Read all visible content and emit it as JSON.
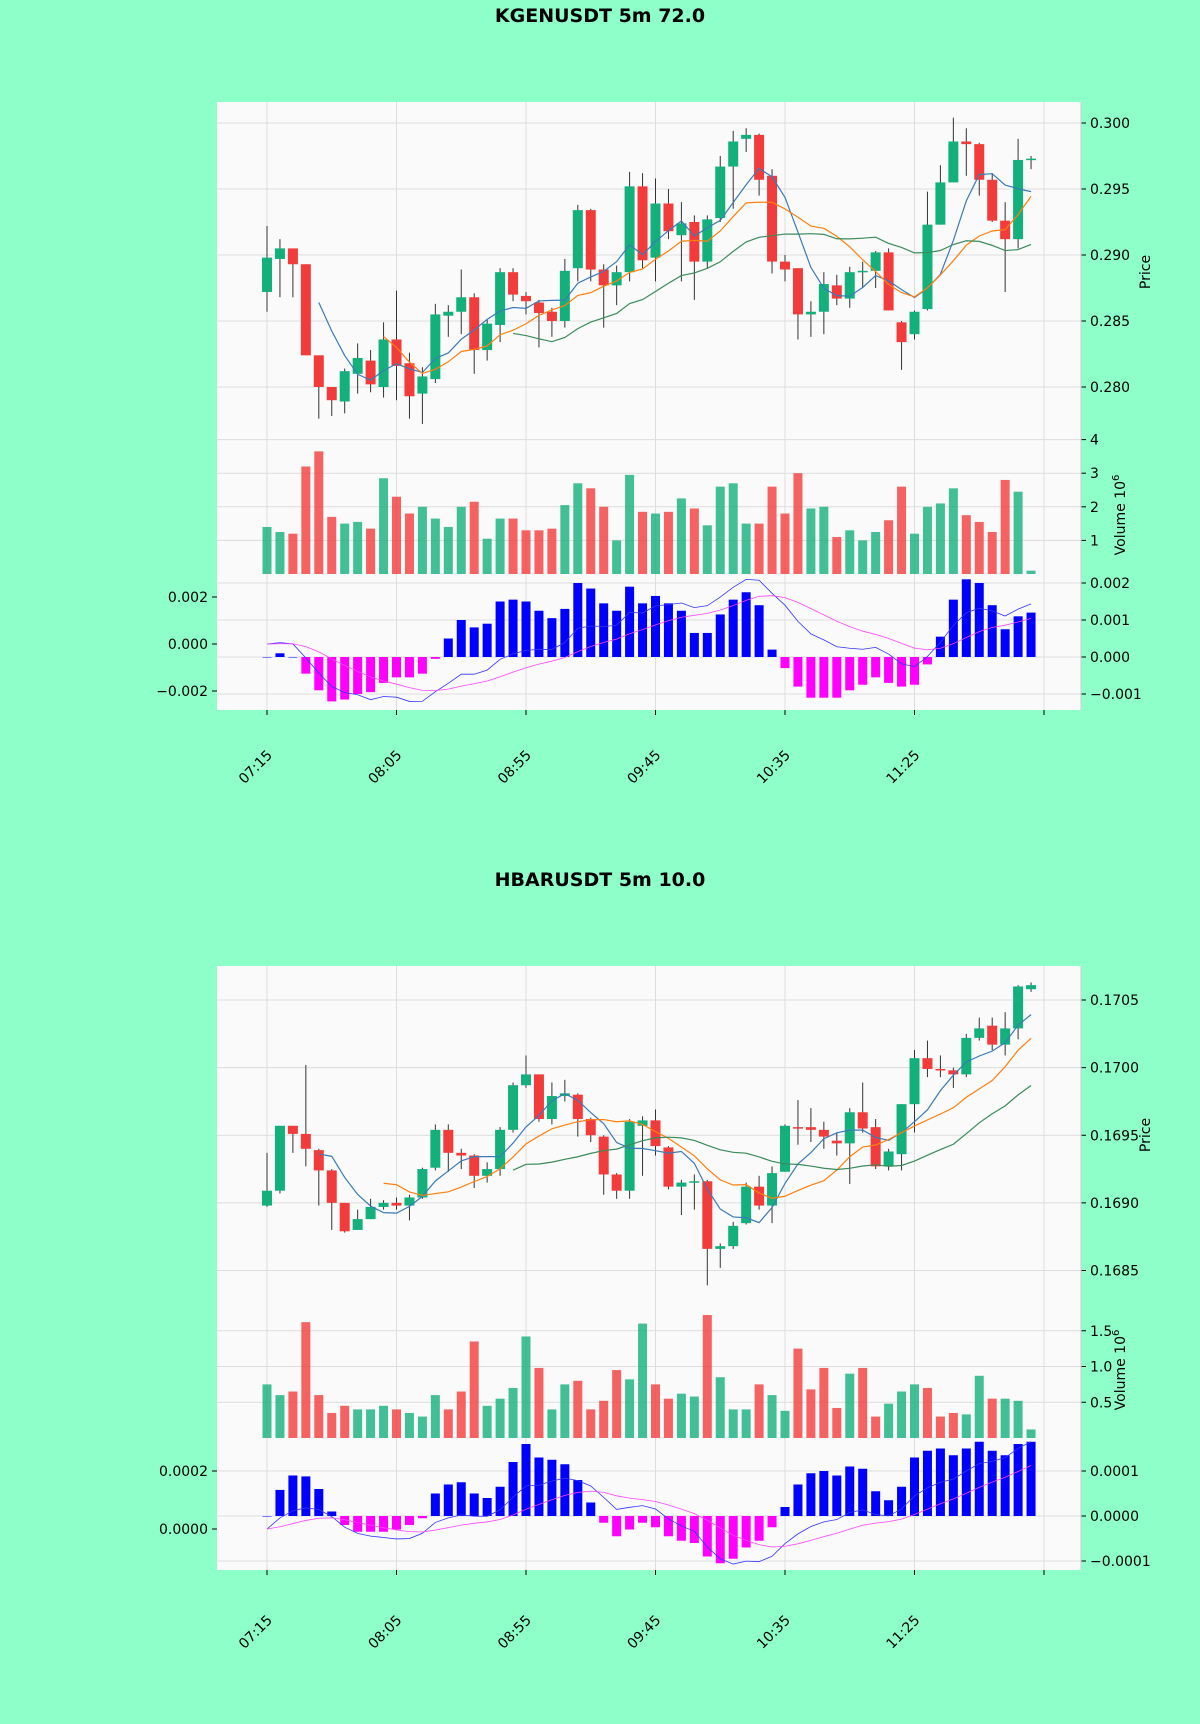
{
  "colors": {
    "background": "#8effc8",
    "panel": "#fafafa",
    "up": "#14b07c",
    "down": "#f23c3c",
    "ma5": "#3b7ab8",
    "ma10": "#ff7f0e",
    "ma20": "#3a8a5a",
    "macd_pos": "#0000ff",
    "macd_neg": "#ff00ff",
    "macd_line": "#3333ff",
    "signal_line": "#ff44ff"
  },
  "x_tick_labels": [
    "07:15",
    "08:05",
    "08:55",
    "09:45",
    "10:35",
    "11:25",
    ""
  ],
  "chart_data": [
    {
      "type": "candlestick",
      "title": "KGENUSDT 5m 72.0",
      "price_label": "Price",
      "volume_label": "Volume",
      "volume_exponent": "10",
      "volume_exponent_power": "6",
      "price_ticks": [
        "0.280",
        "0.285",
        "0.290",
        "0.295",
        "0.300"
      ],
      "price_tick_values": [
        0.28,
        0.285,
        0.29,
        0.295,
        0.3
      ],
      "volume_ticks": [
        "1",
        "2",
        "3",
        "4"
      ],
      "macd_right_ticks": [
        "0.002",
        "0.001",
        "0.000",
        "−0.001"
      ],
      "macd_left_ticks": [
        "0.002",
        "0.000",
        "−0.002"
      ],
      "ohlc": [
        [
          0.2872,
          0.2922,
          0.2857,
          0.2898
        ],
        [
          0.2897,
          0.2912,
          0.2868,
          0.2905
        ],
        [
          0.2905,
          0.2905,
          0.2868,
          0.2893
        ],
        [
          0.2893,
          0.2893,
          0.2824,
          0.2824
        ],
        [
          0.2824,
          0.2824,
          0.2776,
          0.28
        ],
        [
          0.28,
          0.28,
          0.2778,
          0.279
        ],
        [
          0.2789,
          0.2814,
          0.278,
          0.2812
        ],
        [
          0.281,
          0.2833,
          0.2795,
          0.2822
        ],
        [
          0.282,
          0.2828,
          0.2796,
          0.2802
        ],
        [
          0.28,
          0.2849,
          0.2792,
          0.2836
        ],
        [
          0.2836,
          0.2873,
          0.279,
          0.2816
        ],
        [
          0.2818,
          0.2826,
          0.2776,
          0.2793
        ],
        [
          0.2795,
          0.2815,
          0.2772,
          0.2808
        ],
        [
          0.2806,
          0.2863,
          0.2803,
          0.2855
        ],
        [
          0.2854,
          0.2862,
          0.2838,
          0.2857
        ],
        [
          0.2857,
          0.2889,
          0.284,
          0.2868
        ],
        [
          0.2868,
          0.2871,
          0.281,
          0.2828
        ],
        [
          0.2828,
          0.2851,
          0.282,
          0.2848
        ],
        [
          0.2847,
          0.289,
          0.2834,
          0.2887
        ],
        [
          0.2887,
          0.289,
          0.2865,
          0.287
        ],
        [
          0.2869,
          0.2872,
          0.2855,
          0.2865
        ],
        [
          0.2864,
          0.2866,
          0.283,
          0.2856
        ],
        [
          0.2857,
          0.286,
          0.2838,
          0.285
        ],
        [
          0.285,
          0.2897,
          0.2845,
          0.2888
        ],
        [
          0.289,
          0.2938,
          0.288,
          0.2934
        ],
        [
          0.2934,
          0.2935,
          0.288,
          0.2889
        ],
        [
          0.2889,
          0.2893,
          0.2845,
          0.2877
        ],
        [
          0.2877,
          0.2892,
          0.2862,
          0.2887
        ],
        [
          0.2887,
          0.2963,
          0.288,
          0.2952
        ],
        [
          0.2952,
          0.2962,
          0.289,
          0.2896
        ],
        [
          0.2898,
          0.2958,
          0.288,
          0.2939
        ],
        [
          0.2939,
          0.295,
          0.2912,
          0.2918
        ],
        [
          0.2915,
          0.294,
          0.288,
          0.2924
        ],
        [
          0.2925,
          0.293,
          0.2866,
          0.2895
        ],
        [
          0.2895,
          0.293,
          0.289,
          0.2927
        ],
        [
          0.2928,
          0.2975,
          0.2925,
          0.2967
        ],
        [
          0.2967,
          0.2994,
          0.2935,
          0.2986
        ],
        [
          0.2988,
          0.2996,
          0.2978,
          0.2991
        ],
        [
          0.2991,
          0.2992,
          0.2945,
          0.2957
        ],
        [
          0.296,
          0.2965,
          0.2886,
          0.2895
        ],
        [
          0.2895,
          0.29,
          0.288,
          0.2889
        ],
        [
          0.289,
          0.289,
          0.2836,
          0.2855
        ],
        [
          0.2855,
          0.2865,
          0.2838,
          0.2857
        ],
        [
          0.2857,
          0.2887,
          0.284,
          0.2878
        ],
        [
          0.2877,
          0.2885,
          0.2862,
          0.2867
        ],
        [
          0.2867,
          0.2891,
          0.286,
          0.2887
        ],
        [
          0.2887,
          0.2895,
          0.2875,
          0.2888
        ],
        [
          0.2888,
          0.2903,
          0.2875,
          0.2902
        ],
        [
          0.2902,
          0.2905,
          0.2858,
          0.2858
        ],
        [
          0.2849,
          0.285,
          0.2813,
          0.2834
        ],
        [
          0.284,
          0.2858,
          0.2836,
          0.2857
        ],
        [
          0.2859,
          0.2948,
          0.2858,
          0.2923
        ],
        [
          0.2923,
          0.2968,
          0.2923,
          0.2955
        ],
        [
          0.2955,
          0.3004,
          0.2955,
          0.2986
        ],
        [
          0.2986,
          0.2996,
          0.296,
          0.2984
        ],
        [
          0.2984,
          0.2985,
          0.2945,
          0.2957
        ],
        [
          0.2957,
          0.2962,
          0.2925,
          0.2926
        ],
        [
          0.2926,
          0.294,
          0.2872,
          0.2912
        ],
        [
          0.2912,
          0.2988,
          0.2905,
          0.2972
        ],
        [
          0.2972,
          0.2975,
          0.2965,
          0.2973
        ]
      ],
      "volume_millions": [
        1.4,
        1.25,
        1.2,
        3.2,
        3.65,
        1.7,
        1.5,
        1.55,
        1.35,
        2.85,
        2.3,
        1.8,
        2.0,
        1.65,
        1.4,
        2.0,
        2.15,
        1.05,
        1.65,
        1.65,
        1.3,
        1.3,
        1.35,
        2.05,
        2.7,
        2.55,
        2.0,
        1.0,
        2.95,
        1.85,
        1.8,
        1.85,
        2.25,
        1.95,
        1.45,
        2.6,
        2.7,
        1.5,
        1.5,
        2.6,
        1.8,
        3.0,
        1.95,
        2.0,
        1.1,
        1.3,
        1.0,
        1.25,
        1.6,
        2.6,
        1.2,
        2.0,
        2.1,
        2.55,
        1.75,
        1.55,
        1.25,
        2.8,
        2.45,
        0.1
      ],
      "macd_hist": [
        0,
        0.0001,
        0,
        -0.00045,
        -0.0009,
        -0.0012,
        -0.00115,
        -0.001,
        -0.00095,
        -0.0007,
        -0.00055,
        -0.00055,
        -0.00045,
        -5e-05,
        0.0005,
        0.001,
        0.0008,
        0.0009,
        0.0015,
        0.00155,
        0.0015,
        0.00125,
        0.00105,
        0.0013,
        0.002,
        0.00185,
        0.00145,
        0.00125,
        0.0019,
        0.00145,
        0.00165,
        0.00145,
        0.00125,
        0.00065,
        0.00065,
        0.00115,
        0.00155,
        0.00175,
        0.0014,
        0.0002,
        -0.0003,
        -0.0008,
        -0.0011,
        -0.0011,
        -0.0011,
        -0.0009,
        -0.00075,
        -0.00055,
        -0.0007,
        -0.0008,
        -0.00075,
        -0.0002,
        0.00055,
        0.00155,
        0.0021,
        0.002,
        0.0014,
        0.00075,
        0.0011,
        0.0012
      ]
    },
    {
      "type": "candlestick",
      "title": "HBARUSDT 5m 10.0",
      "price_label": "Price",
      "volume_label": "Volume",
      "volume_exponent": "10",
      "volume_exponent_power": "6",
      "price_ticks": [
        "0.1685",
        "0.1690",
        "0.1695",
        "0.1700",
        "0.1705"
      ],
      "price_tick_values": [
        0.1685,
        0.169,
        0.1695,
        0.17,
        0.1705
      ],
      "volume_ticks": [
        "0.5",
        "1.0",
        "1.5"
      ],
      "macd_right_ticks": [
        "0.0001",
        "0.0000",
        "−0.0001"
      ],
      "macd_left_ticks": [
        "0.0002",
        "0.0000"
      ],
      "ohlc": [
        [
          0.16898,
          0.16937,
          0.16897,
          0.16909
        ],
        [
          0.16909,
          0.16957,
          0.16907,
          0.16957
        ],
        [
          0.16957,
          0.16957,
          0.16937,
          0.16951
        ],
        [
          0.16951,
          0.17002,
          0.16927,
          0.1694
        ],
        [
          0.16939,
          0.1694,
          0.16898,
          0.16924
        ],
        [
          0.16924,
          0.16925,
          0.1688,
          0.169
        ],
        [
          0.169,
          0.169,
          0.16878,
          0.16879
        ],
        [
          0.1688,
          0.16895,
          0.1688,
          0.16888
        ],
        [
          0.16888,
          0.16903,
          0.16888,
          0.16897
        ],
        [
          0.16897,
          0.16902,
          0.16895,
          0.169
        ],
        [
          0.169,
          0.16904,
          0.16895,
          0.16898
        ],
        [
          0.16898,
          0.16906,
          0.16887,
          0.16904
        ],
        [
          0.16904,
          0.16926,
          0.16903,
          0.16925
        ],
        [
          0.16926,
          0.16958,
          0.16924,
          0.16954
        ],
        [
          0.16954,
          0.16958,
          0.16923,
          0.16937
        ],
        [
          0.16937,
          0.1694,
          0.16925,
          0.16935
        ],
        [
          0.16935,
          0.16936,
          0.16911,
          0.1692
        ],
        [
          0.1692,
          0.1693,
          0.16915,
          0.16925
        ],
        [
          0.16925,
          0.16956,
          0.1692,
          0.16954
        ],
        [
          0.16954,
          0.16989,
          0.16952,
          0.16987
        ],
        [
          0.16987,
          0.17009,
          0.16985,
          0.16995
        ],
        [
          0.16995,
          0.16995,
          0.1696,
          0.16962
        ],
        [
          0.16962,
          0.16989,
          0.16958,
          0.16979
        ],
        [
          0.16979,
          0.16991,
          0.16975,
          0.16981
        ],
        [
          0.1698,
          0.16981,
          0.16949,
          0.16962
        ],
        [
          0.16962,
          0.16963,
          0.16945,
          0.1695
        ],
        [
          0.16949,
          0.1695,
          0.16906,
          0.16921
        ],
        [
          0.16921,
          0.16922,
          0.16903,
          0.16909
        ],
        [
          0.16909,
          0.16962,
          0.16903,
          0.1696
        ],
        [
          0.16957,
          0.16964,
          0.1692,
          0.16961
        ],
        [
          0.16961,
          0.16969,
          0.16935,
          0.16942
        ],
        [
          0.16941,
          0.16942,
          0.1691,
          0.16912
        ],
        [
          0.16912,
          0.16917,
          0.16891,
          0.16915
        ],
        [
          0.16915,
          0.16921,
          0.16895,
          0.16916
        ],
        [
          0.16916,
          0.16917,
          0.16839,
          0.16866
        ],
        [
          0.16866,
          0.1687,
          0.16852,
          0.16868
        ],
        [
          0.16868,
          0.16886,
          0.16866,
          0.16883
        ],
        [
          0.16885,
          0.16915,
          0.16884,
          0.16912
        ],
        [
          0.16912,
          0.1692,
          0.16895,
          0.16898
        ],
        [
          0.16898,
          0.16927,
          0.16885,
          0.16922
        ],
        [
          0.16923,
          0.16958,
          0.16923,
          0.16957
        ],
        [
          0.16956,
          0.16976,
          0.16943,
          0.16955
        ],
        [
          0.16956,
          0.1697,
          0.16945,
          0.16954
        ],
        [
          0.16954,
          0.1696,
          0.1694,
          0.16949
        ],
        [
          0.16946,
          0.16952,
          0.16935,
          0.16944
        ],
        [
          0.16944,
          0.1697,
          0.16914,
          0.16967
        ],
        [
          0.16967,
          0.16989,
          0.16952,
          0.16955
        ],
        [
          0.16956,
          0.16962,
          0.16925,
          0.16927
        ],
        [
          0.16927,
          0.1694,
          0.16924,
          0.16938
        ],
        [
          0.16936,
          0.16973,
          0.16924,
          0.16973
        ],
        [
          0.16973,
          0.17013,
          0.16952,
          0.17007
        ],
        [
          0.17007,
          0.1702,
          0.16993,
          0.16999
        ],
        [
          0.16999,
          0.17009,
          0.16993,
          0.16998
        ],
        [
          0.16998,
          0.17,
          0.16985,
          0.16995
        ],
        [
          0.16995,
          0.17025,
          0.16993,
          0.17022
        ],
        [
          0.17022,
          0.17037,
          0.1702,
          0.17029
        ],
        [
          0.17031,
          0.17037,
          0.17013,
          0.17017
        ],
        [
          0.17017,
          0.17041,
          0.17009,
          0.17029
        ],
        [
          0.17029,
          0.17061,
          0.17021,
          0.1706
        ],
        [
          0.17058,
          0.17063,
          0.17056,
          0.17061
        ]
      ],
      "volume_millions": [
        0.75,
        0.6,
        0.65,
        1.62,
        0.6,
        0.35,
        0.45,
        0.4,
        0.4,
        0.45,
        0.4,
        0.35,
        0.3,
        0.6,
        0.4,
        0.65,
        1.35,
        0.45,
        0.55,
        0.7,
        1.42,
        0.98,
        0.4,
        0.75,
        0.8,
        0.4,
        0.52,
        0.95,
        0.82,
        1.6,
        0.75,
        0.55,
        0.62,
        0.58,
        1.72,
        0.85,
        0.4,
        0.4,
        0.75,
        0.6,
        0.38,
        1.25,
        0.68,
        0.98,
        0.42,
        0.9,
        0.98,
        0.3,
        0.48,
        0.65,
        0.75,
        0.7,
        0.3,
        0.35,
        0.33,
        0.87,
        0.55,
        0.55,
        0.52,
        0.12
      ],
      "macd_hist": [
        0,
        5.8e-05,
        9e-05,
        8.8e-05,
        6e-05,
        1e-05,
        -2e-05,
        -3.5e-05,
        -3.5e-05,
        -3.5e-05,
        -3e-05,
        -2e-05,
        -5e-06,
        5e-05,
        7e-05,
        7.5e-05,
        5e-05,
        4e-05,
        6.5e-05,
        0.00012,
        0.00016,
        0.00013,
        0.000125,
        0.000115,
        8e-05,
        3e-05,
        -1.5e-05,
        -4.5e-05,
        -3e-05,
        -1.5e-05,
        -2.5e-05,
        -4.5e-05,
        -5.5e-05,
        -6e-05,
        -9e-05,
        -0.000105,
        -9.5e-05,
        -7e-05,
        -5.5e-05,
        -2.5e-05,
        2e-05,
        7e-05,
        9.5e-05,
        0.0001,
        9e-05,
        0.00011,
        0.000105,
        5.5e-05,
        3.5e-05,
        6.5e-05,
        0.00013,
        0.000145,
        0.00015,
        0.000135,
        0.00015,
        0.000165,
        0.000145,
        0.000135,
        0.00016,
        0.000165
      ]
    }
  ]
}
